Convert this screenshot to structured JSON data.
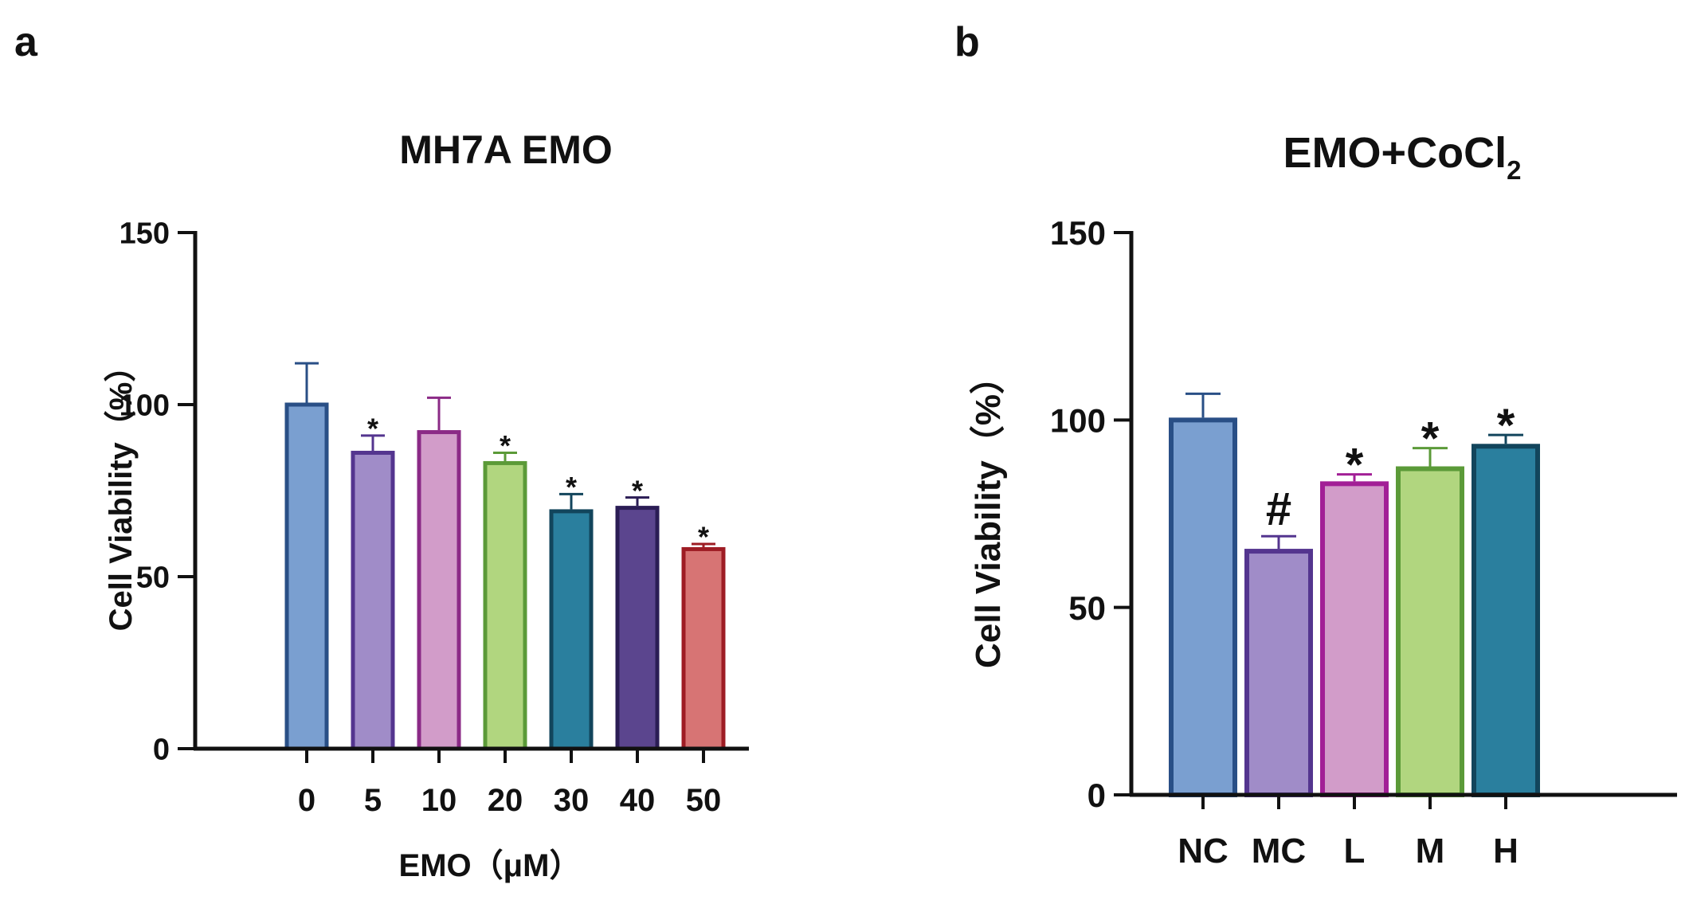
{
  "chart_data": [
    {
      "panel_label": "a",
      "type": "bar",
      "title": "MH7A EMO",
      "title_subscript": "",
      "xlabel": "EMO（μM）",
      "ylabel": "Cell Viability（%）",
      "ylim": [
        0,
        150
      ],
      "yticks": [
        0,
        50,
        100,
        150
      ],
      "categories": [
        "0",
        "5",
        "10",
        "20",
        "30",
        "40",
        "50"
      ],
      "values": [
        100,
        86,
        92,
        83,
        69,
        70,
        58
      ],
      "errors": [
        12,
        5,
        10,
        3,
        5,
        3,
        1.5
      ],
      "annotations": [
        "",
        "*",
        "",
        "*",
        "*",
        "*",
        "*"
      ],
      "fill_colors": [
        "#7a9fd0",
        "#a08cc8",
        "#d29cc9",
        "#b1d67f",
        "#2a7f9e",
        "#5b458e",
        "#d77474"
      ],
      "stroke_colors": [
        "#294f86",
        "#54358f",
        "#8b2a86",
        "#5b9a38",
        "#12455c",
        "#2b1d55",
        "#9e1c24"
      ]
    },
    {
      "panel_label": "b",
      "type": "bar",
      "title": "EMO+CoCl",
      "title_subscript": "2",
      "xlabel": "",
      "ylabel": "Cell Viability（%）",
      "ylim": [
        0,
        150
      ],
      "yticks": [
        0,
        50,
        100,
        150
      ],
      "categories": [
        "NC",
        "MC",
        "L",
        "M",
        "H"
      ],
      "values": [
        100,
        65,
        83,
        87,
        93
      ],
      "errors": [
        7,
        4,
        2.5,
        5.5,
        3
      ],
      "annotations": [
        "",
        "#",
        "*",
        "*",
        "*"
      ],
      "fill_colors": [
        "#7a9fd0",
        "#a08cc8",
        "#d29cc9",
        "#b1d67f",
        "#2a7f9e"
      ],
      "stroke_colors": [
        "#294f86",
        "#54358f",
        "#a21f96",
        "#5b9a38",
        "#12455c"
      ]
    }
  ]
}
